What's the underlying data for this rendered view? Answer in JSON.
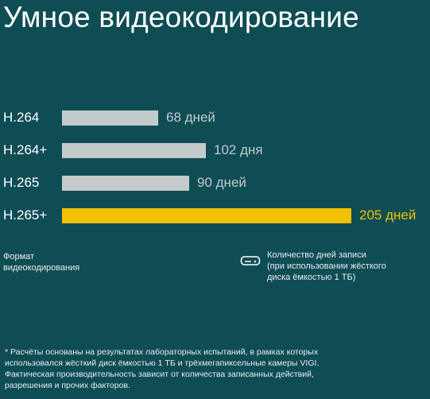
{
  "title": "Умное видеокодирование",
  "legend": {
    "format_label_lines": [
      "Формат",
      "видеокодирования"
    ],
    "days_label_lines": [
      "Количество дней записи",
      "(при использовании жёсткого",
      "диска ёмкостью 1 ТБ)"
    ],
    "days_icon": "hdd-icon"
  },
  "footnote_lines": [
    "* Расчёты основаны на результатах лабораторных испытаний, в рамках которых",
    "использовался жёсткий диск ёмкостью 1 ТБ и трёхмегапиксельные камеры VIGI.",
    "Фактическая производительность зависит от количества записанных действий,",
    "разрешения и прочих факторов."
  ],
  "colors": {
    "background": "#0f4d55",
    "bar_default": "#c4cbcd",
    "bar_highlight": "#f2c200",
    "text": "#ffffff",
    "value_text": "#c4cbcd",
    "value_highlight_text": "#f2c200"
  },
  "chart_data": {
    "type": "bar",
    "orientation": "horizontal",
    "categories": [
      "H.264",
      "H.264+",
      "H.265",
      "H.265+"
    ],
    "values": [
      68,
      102,
      90,
      205
    ],
    "value_labels": [
      "68 дней",
      "102 дня",
      "90 дней",
      "205 дней"
    ],
    "highlight_index": 3,
    "xlabel": "Количество дней записи (при использовании жёсткого диска ёмкостью 1 ТБ)",
    "ylabel": "Формат видеокодирования",
    "xlim": [
      0,
      205
    ],
    "grid": false
  }
}
